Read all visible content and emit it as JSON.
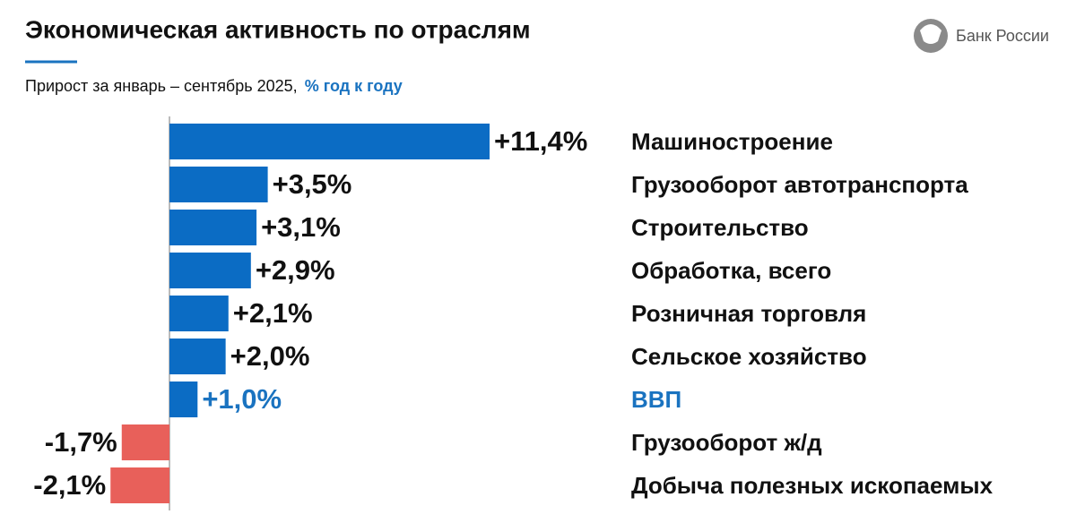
{
  "chart_data": {
    "type": "bar",
    "orientation": "horizontal",
    "title": "Экономическая активность по отраслям",
    "subtitle": "Прирост за январь – сентябрь 2025,",
    "subtitle_highlight": "% год к году",
    "logo": "Банк России",
    "categories": [
      "Машиностроение",
      "Грузооборот автотранспорта",
      "Строительство",
      "Обработка, всего",
      "Розничная торговля",
      "Сельское хозяйство",
      "ВВП",
      "Грузооборот ж/д",
      "Добыча полезных ископаемых"
    ],
    "values": [
      11.4,
      3.5,
      3.1,
      2.9,
      2.1,
      2.0,
      1.0,
      -1.7,
      -2.1
    ],
    "value_labels": [
      "+11,4%",
      "+3,5%",
      "+3,1%",
      "+2,9%",
      "+2,1%",
      "+2,0%",
      "+1,0%",
      "-1,7%",
      "-2,1%"
    ],
    "colors": [
      "#0b6cc4",
      "#0b6cc4",
      "#0b6cc4",
      "#0b6cc4",
      "#0b6cc4",
      "#0b6cc4",
      "#0b6cc4",
      "#e8605a",
      "#e8605a"
    ],
    "label_colors": [
      "#111111",
      "#111111",
      "#111111",
      "#111111",
      "#111111",
      "#111111",
      "#1a73c0",
      "#111111",
      "#111111"
    ]
  }
}
